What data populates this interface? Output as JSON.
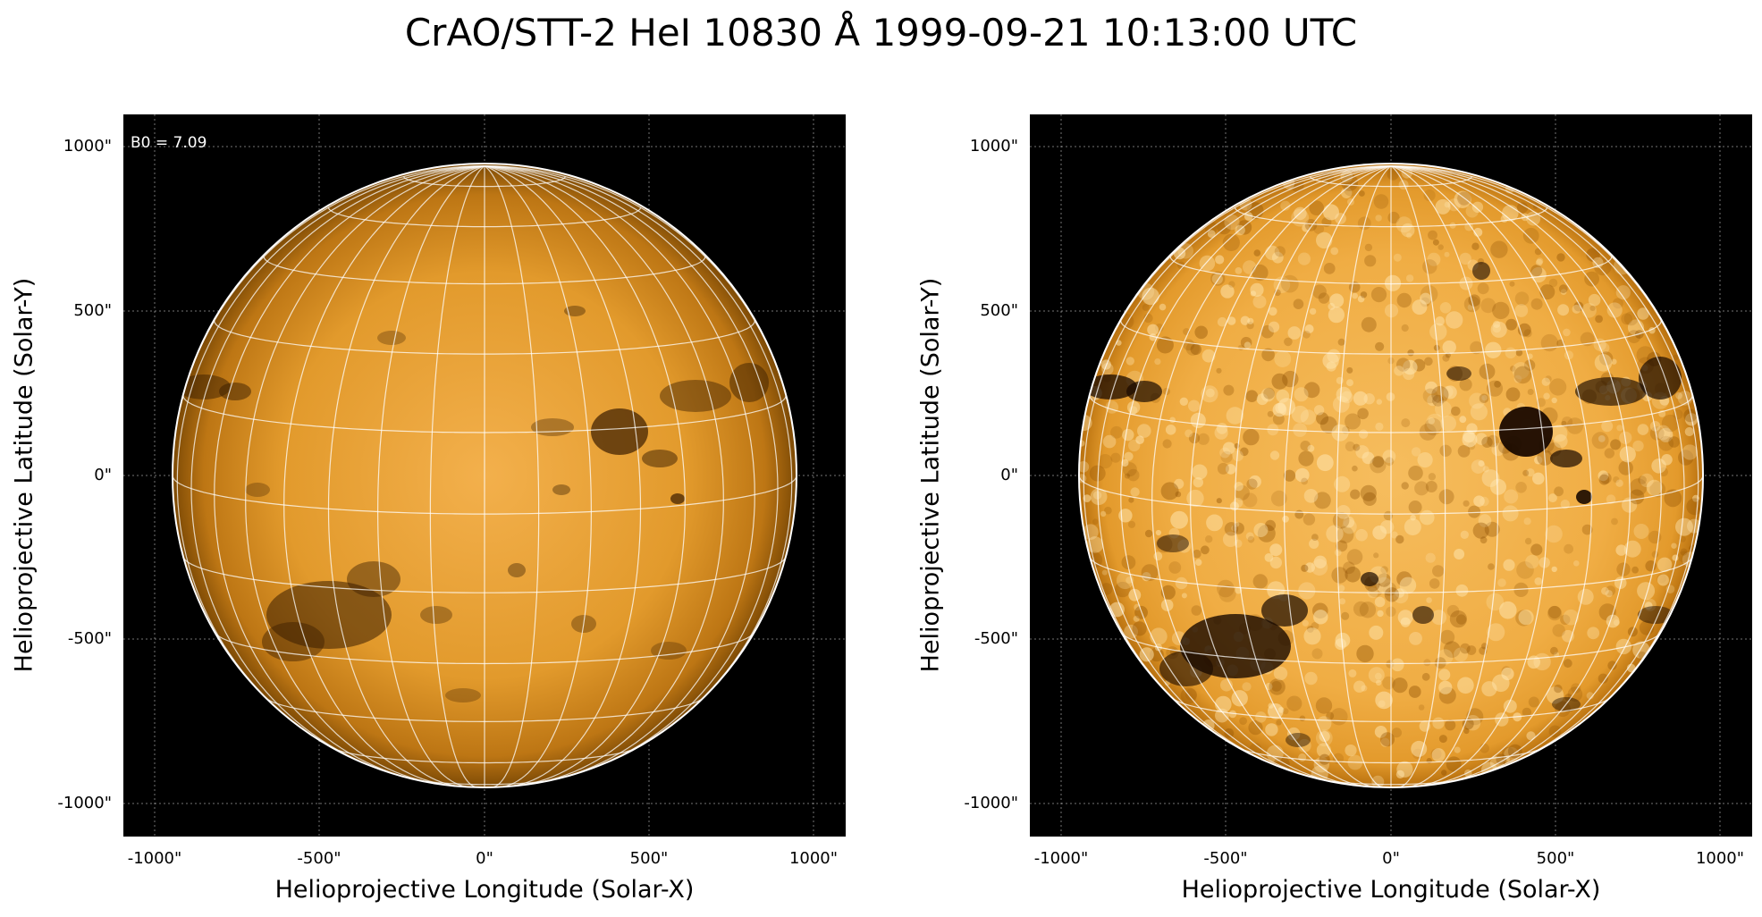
{
  "title": "CrAO/STT-2 HeI 10830 Å 1999-09-21 10:13:00 UTC",
  "panels": [
    {
      "xlabel": "Helioprojective Longitude (Solar-X)",
      "ylabel": "Helioprojective Latitude (Solar-Y)",
      "annotation": "B0 = 7.09",
      "xticks": [
        "-1000\"",
        "-500\"",
        "0\"",
        "500\"",
        "1000\""
      ],
      "yticks": [
        "1000\"",
        "500\"",
        "0\"",
        "-500\"",
        "-1000\""
      ],
      "contrast": "normal"
    },
    {
      "xlabel": "Helioprojective Longitude (Solar-X)",
      "ylabel": "Helioprojective Latitude (Solar-Y)",
      "annotation": "",
      "xticks": [
        "-1000\"",
        "-500\"",
        "0\"",
        "500\"",
        "1000\""
      ],
      "yticks": [
        "1000\"",
        "500\"",
        "0\"",
        "-500\"",
        "-1000\""
      ],
      "contrast": "enhanced"
    }
  ],
  "colors": {
    "disk_center": "#f6b450",
    "disk_mid": "#d98e1e",
    "disk_limb": "#8a5206",
    "background": "#000000",
    "grid": "#ffffff"
  }
}
